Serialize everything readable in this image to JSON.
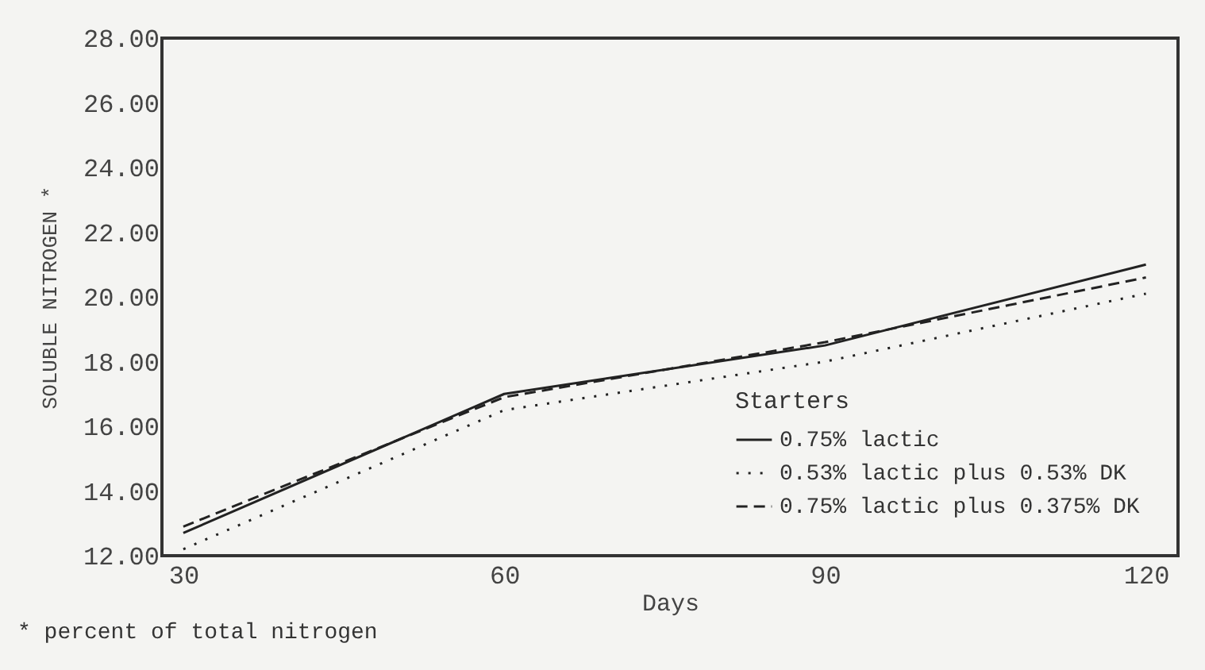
{
  "chart_data": {
    "type": "line",
    "xlabel": "Days",
    "ylabel": "SOLUBLE NITROGEN *",
    "legend_title": "Starters",
    "annotations": [
      "* percent of total nitrogen"
    ],
    "x": [
      30,
      60,
      90,
      120
    ],
    "series": [
      {
        "name": "0.75% lactic",
        "color": "#222222",
        "line_style": "solid",
        "values": [
          12.7,
          17.0,
          18.5,
          21.0
        ]
      },
      {
        "name": "0.53% lactic plus 0.53% DK",
        "color": "#222222",
        "line_style": "dotted",
        "values": [
          12.2,
          16.5,
          18.0,
          20.1
        ]
      },
      {
        "name": "0.75% lactic plus 0.375% DK",
        "color": "#222222",
        "line_style": "dashed",
        "values": [
          12.9,
          16.9,
          18.6,
          20.6
        ]
      }
    ],
    "xlim": [
      28,
      123
    ],
    "xticks": [
      30,
      60,
      90,
      120
    ],
    "ylim": [
      12,
      28
    ],
    "yticks": [
      {
        "value": 12,
        "label": "12.00"
      },
      {
        "value": 14,
        "label": "14.00"
      },
      {
        "value": 16,
        "label": "16.00"
      },
      {
        "value": 18,
        "label": "18.00"
      },
      {
        "value": 20,
        "label": "20.00"
      },
      {
        "value": 22,
        "label": "22.00"
      },
      {
        "value": 24,
        "label": "24.00"
      },
      {
        "value": 26,
        "label": "26.00"
      },
      {
        "value": 28,
        "label": "28.00"
      }
    ],
    "grid": false,
    "legend": "bottom right",
    "marker": "none"
  }
}
